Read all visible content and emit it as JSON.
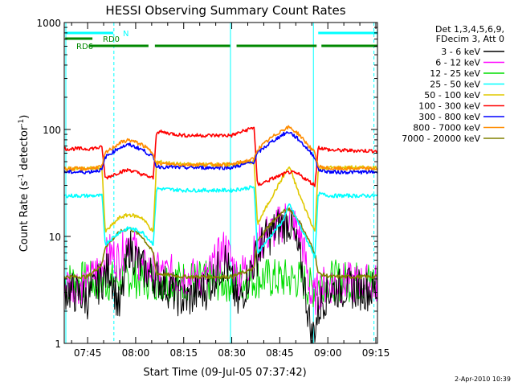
{
  "chart_data": {
    "type": "line",
    "title": "HESSI Observing Summary Count Rates",
    "xlabel": "Start Time (09-Jul-05 07:37:42)",
    "ylabel": "Count Rate (s⁻¹ detector⁻¹)",
    "ylabel_parts": {
      "pre": "Count Rate (s",
      "exp1": "-1",
      "mid": " detector",
      "exp2": "-1",
      "post": ")"
    },
    "yscale": "log",
    "ylim": [
      1,
      1000
    ],
    "yticks": [
      1,
      10,
      100,
      1000
    ],
    "ytick_labels": [
      "1",
      "10",
      "100",
      "1000"
    ],
    "xlim_minutes": [
      37.7,
      135.5
    ],
    "xticks_minutes": [
      45,
      60,
      75,
      90,
      105,
      120,
      135
    ],
    "xtick_labels": [
      "07:45",
      "08:00",
      "08:15",
      "08:30",
      "08:45",
      "09:00",
      "09:15"
    ],
    "grid": false,
    "legend_position": "top-right",
    "legend_header": [
      "Det 1,3,4,5,6,9,",
      "FDecim 3, Att 0"
    ],
    "series": [
      {
        "name": "3 - 6 keV",
        "color": "#000000",
        "style": "bursty",
        "x": [
          38,
          45,
          52,
          55,
          58,
          62,
          68,
          75,
          82,
          88,
          92,
          96,
          100,
          104,
          108,
          112,
          115,
          118,
          121,
          126,
          130,
          135
        ],
        "y": [
          3.2,
          2.6,
          5,
          2,
          8,
          5,
          3.8,
          2.5,
          3.2,
          6,
          2.2,
          5,
          9,
          12,
          14,
          5,
          1.1,
          2.5,
          3.2,
          3.3,
          3.2,
          3.1
        ]
      },
      {
        "name": "6 - 12 keV",
        "color": "#ff00ff",
        "style": "bursty",
        "x": [
          38,
          45,
          52,
          55,
          58,
          62,
          68,
          75,
          82,
          88,
          92,
          96,
          100,
          104,
          108,
          112,
          115,
          118,
          121,
          126,
          130,
          135
        ],
        "y": [
          3.6,
          3.6,
          7,
          6,
          10,
          5,
          4.5,
          4.2,
          4,
          8,
          4,
          6,
          10,
          12,
          16,
          9,
          2.5,
          3.4,
          3.6,
          3.7,
          3.6,
          3.6
        ]
      },
      {
        "name": "12 - 25 keV",
        "color": "#00dd00",
        "style": "bursty",
        "x": [
          38,
          45,
          52,
          55,
          58,
          62,
          68,
          75,
          82,
          88,
          92,
          96,
          100,
          104,
          108,
          112,
          115,
          118,
          121,
          126,
          130,
          135
        ],
        "y": [
          3.8,
          3.8,
          3.8,
          4,
          4.2,
          4,
          3.9,
          3.9,
          3.8,
          3.8,
          3.8,
          4,
          4.1,
          4,
          4,
          3.9,
          3.2,
          3.8,
          3.9,
          3.8,
          3.8,
          3.8
        ]
      },
      {
        "name": "25 - 50 keV",
        "color": "#00ffff",
        "style": "flare",
        "x": [
          38,
          45,
          49.5,
          50.5,
          55,
          58,
          62,
          65.5,
          66.5,
          75,
          90,
          97,
          98,
          102,
          106,
          108,
          111,
          116,
          117,
          121,
          135
        ],
        "y": [
          24,
          24,
          24,
          8.5,
          11,
          12,
          11,
          8.5,
          28,
          27,
          27,
          29,
          7,
          10,
          14,
          20,
          13,
          6.5,
          25,
          24,
          24
        ]
      },
      {
        "name": "50 - 100 keV",
        "color": "#e0c800",
        "style": "flare",
        "x": [
          38,
          45,
          49.5,
          50.5,
          55,
          58,
          62,
          65.5,
          66.5,
          75,
          90,
          97,
          98,
          102,
          106,
          108,
          111,
          116,
          117,
          121,
          135
        ],
        "y": [
          43,
          43,
          44,
          11,
          15,
          16,
          15,
          11,
          50,
          47,
          47,
          50,
          13,
          22,
          36,
          45,
          25,
          11,
          43,
          44,
          44
        ]
      },
      {
        "name": "100 - 300 keV",
        "color": "#ff0000",
        "style": "flare",
        "x": [
          38,
          45,
          49.5,
          50.5,
          55,
          58,
          62,
          65.5,
          66.5,
          75,
          90,
          97,
          98,
          102,
          106,
          108,
          111,
          116,
          117,
          121,
          135
        ],
        "y": [
          66,
          66,
          68,
          35,
          40,
          42,
          38,
          35,
          96,
          88,
          88,
          105,
          30,
          34,
          38,
          40,
          38,
          30,
          68,
          64,
          63
        ]
      },
      {
        "name": "300 - 800 keV",
        "color": "#0000ff",
        "style": "flare",
        "x": [
          38,
          45,
          49.5,
          50.5,
          55,
          58,
          62,
          65.5,
          66.5,
          75,
          90,
          97,
          98,
          102,
          106,
          108,
          111,
          116,
          117,
          121,
          135
        ],
        "y": [
          40,
          40,
          42,
          55,
          68,
          72,
          65,
          55,
          45,
          44,
          44,
          50,
          60,
          75,
          90,
          95,
          80,
          55,
          42,
          40,
          40
        ]
      },
      {
        "name": "800 - 7000 keV",
        "color": "#ff8c00",
        "style": "flare",
        "x": [
          38,
          45,
          49.5,
          50.5,
          55,
          58,
          62,
          65.5,
          66.5,
          75,
          90,
          97,
          98,
          102,
          106,
          108,
          111,
          116,
          117,
          121,
          135
        ],
        "y": [
          43,
          43,
          45,
          60,
          75,
          80,
          72,
          60,
          48,
          47,
          47,
          53,
          65,
          82,
          100,
          105,
          90,
          60,
          45,
          43,
          43
        ]
      },
      {
        "name": "7000 - 20000 keV",
        "color": "#808000",
        "style": "flare",
        "x": [
          38,
          45,
          49.5,
          50.5,
          55,
          58,
          62,
          65.5,
          66.5,
          75,
          90,
          97,
          98,
          102,
          106,
          108,
          111,
          116,
          117,
          121,
          135
        ],
        "y": [
          4.2,
          4.2,
          5.5,
          8,
          11,
          12,
          10,
          7,
          4.5,
          4.2,
          4.2,
          5,
          9,
          13,
          17,
          18,
          14,
          7,
          4.5,
          4.2,
          4.2
        ]
      }
    ],
    "segments": [
      {
        "label": "N",
        "color": "#00ffff",
        "x_minutes": [
          [
            38,
            53
          ],
          [
            117,
            135.5
          ]
        ]
      },
      {
        "label": "RD0",
        "color": "#008800",
        "x_minutes": [
          [
            38,
            46.5
          ]
        ]
      },
      {
        "label": "RD6",
        "color": "#008800",
        "x_minutes": [
          [
            45.5,
            64
          ],
          [
            66,
            89.5
          ],
          [
            91.5,
            116.5
          ],
          [
            118,
            135.5
          ]
        ]
      }
    ],
    "vlines_solid_minutes": [
      38.2,
      89.6,
      115.5
    ],
    "vlines_dashed_minutes": [
      53.2,
      134.4
    ],
    "footer_date": "2-Apr-2010 10:39"
  }
}
